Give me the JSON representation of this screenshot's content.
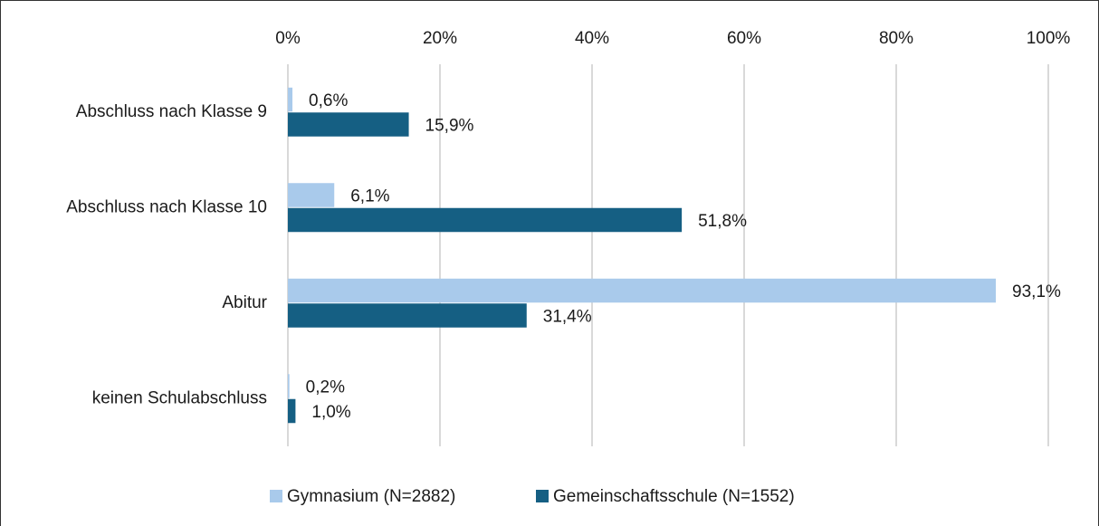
{
  "chart_data": {
    "type": "hbar",
    "categories": [
      "Abschluss nach Klasse 9",
      "Abschluss nach Klasse 10",
      "Abitur",
      "keinen Schulabschluss"
    ],
    "series": [
      {
        "name": "Gymnasium (N=2882)",
        "color": "#a9caeb",
        "values": [
          0.6,
          6.1,
          93.1,
          0.2
        ],
        "value_labels": [
          "0,6%",
          "6,1%",
          "93,1%",
          "0,2%"
        ]
      },
      {
        "name": "Gemeinschaftsschule (N=1552)",
        "color": "#155f83",
        "values": [
          15.9,
          51.8,
          31.4,
          1.0
        ],
        "value_labels": [
          "15,9%",
          "51,8%",
          "31,4%",
          "1,0%"
        ]
      }
    ],
    "xlim": [
      0,
      100
    ],
    "xticks": [
      {
        "value": 0,
        "label": "0%"
      },
      {
        "value": 20,
        "label": "20%"
      },
      {
        "value": 40,
        "label": "40%"
      },
      {
        "value": 60,
        "label": "60%"
      },
      {
        "value": 80,
        "label": "80%"
      },
      {
        "value": 100,
        "label": "100%"
      }
    ],
    "grid": true,
    "legend": "bottom"
  }
}
